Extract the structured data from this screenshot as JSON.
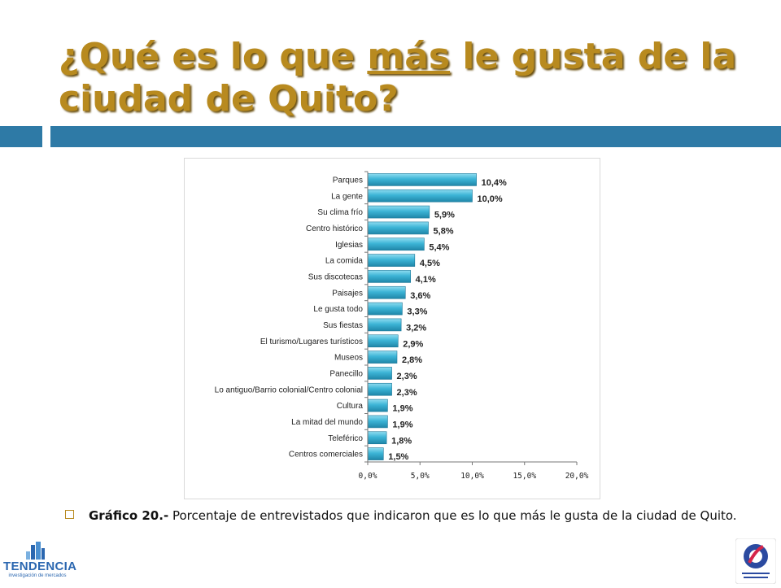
{
  "slide": {
    "title_part1": "¿Qué es lo que ",
    "title_underlined": "más",
    "title_part2": " le gusta de la ciudad de Quito?",
    "caption_bold": "Gráfico 20.-",
    "caption_text": " Porcentaje de entrevistados que indicaron que es lo que más le gusta de la ciudad de Quito.",
    "logo_left_text": "TENDENCIA",
    "logo_left_sub": "investigación de mercados",
    "colors": {
      "title": "#b88a1f",
      "band": "#2e7aa6",
      "bar": "#3cb4d6"
    }
  },
  "chart_data": {
    "type": "bar",
    "orientation": "horizontal",
    "categories": [
      "Parques",
      "La gente",
      "Su clima frío",
      "Centro histórico",
      "Iglesias",
      "La comida",
      "Sus discotecas",
      "Paisajes",
      "Le gusta todo",
      "Sus fiestas",
      "El turismo/Lugares turísticos",
      "Museos",
      "Panecillo",
      "Lo antiguo/Barrio colonial/Centro colonial",
      "Cultura",
      "La mitad del mundo",
      "Teleférico",
      "Centros comerciales"
    ],
    "values": [
      10.4,
      10.0,
      5.9,
      5.8,
      5.4,
      4.5,
      4.1,
      3.6,
      3.3,
      3.2,
      2.9,
      2.8,
      2.3,
      2.3,
      1.9,
      1.9,
      1.8,
      1.5
    ],
    "data_labels": [
      "10,4%",
      "10,0%",
      "5,9%",
      "5,8%",
      "5,4%",
      "4,5%",
      "4,1%",
      "3,6%",
      "3,3%",
      "3,2%",
      "2,9%",
      "2,8%",
      "2,3%",
      "2,3%",
      "1,9%",
      "1,9%",
      "1,8%",
      "1,5%"
    ],
    "xlim": [
      0,
      20
    ],
    "xticks": [
      0,
      5,
      10,
      15,
      20
    ],
    "xtick_labels": [
      "0,0%",
      "5,0%",
      "10,0%",
      "15,0%",
      "20,0%"
    ],
    "grid": false,
    "legend": false
  }
}
